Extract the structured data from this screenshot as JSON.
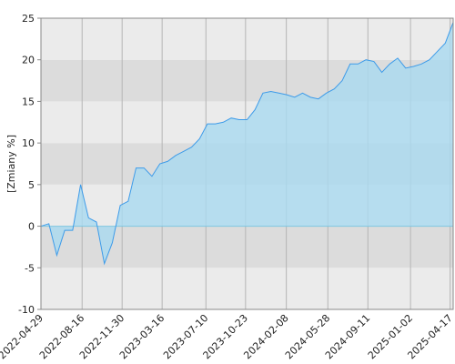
{
  "chart_data": {
    "type": "area",
    "ylabel": "[Zmiany %]",
    "x": [
      "2022-04-29",
      "2022-05-20",
      "2022-06-10",
      "2022-07-01",
      "2022-07-22",
      "2022-08-12",
      "2022-09-02",
      "2022-09-23",
      "2022-10-14",
      "2022-11-04",
      "2022-11-25",
      "2022-12-16",
      "2023-01-06",
      "2023-01-27",
      "2023-02-17",
      "2023-03-10",
      "2023-03-31",
      "2023-04-21",
      "2023-05-12",
      "2023-06-02",
      "2023-06-23",
      "2023-07-14",
      "2023-08-04",
      "2023-08-25",
      "2023-09-15",
      "2023-10-06",
      "2023-10-27",
      "2023-11-17",
      "2023-12-08",
      "2023-12-29",
      "2024-01-19",
      "2024-02-09",
      "2024-03-01",
      "2024-03-22",
      "2024-04-12",
      "2024-05-03",
      "2024-05-24",
      "2024-06-14",
      "2024-07-05",
      "2024-07-26",
      "2024-08-16",
      "2024-09-06",
      "2024-09-27",
      "2024-10-18",
      "2024-11-08",
      "2024-11-29",
      "2024-12-20",
      "2025-01-10",
      "2025-01-31",
      "2025-02-21",
      "2025-03-14",
      "2025-04-04",
      "2025-04-25"
    ],
    "series": [
      {
        "color": "#3d9be9",
        "fill": "#a9d9f0",
        "values": [
          0,
          0.3,
          -3.5,
          -0.5,
          -0.5,
          5,
          1,
          0.5,
          -4.5,
          -2,
          2.5,
          3,
          7,
          7,
          6,
          7.5,
          7.8,
          8.5,
          9,
          9.5,
          10.5,
          12.3,
          12.3,
          12.5,
          13,
          12.8,
          12.8,
          14,
          16,
          16.2,
          16,
          15.8,
          15.5,
          16,
          15.5,
          15.3,
          16,
          16.5,
          17.5,
          19.5,
          19.5,
          20,
          19.8,
          18.5,
          19.5,
          20.2,
          19,
          19.2,
          19.5,
          20,
          21,
          22,
          24.5
        ]
      }
    ],
    "xlim": [
      "2022-04-29",
      "2025-04-25"
    ],
    "xticks": [
      "2022-04-29",
      "2022-08-16",
      "2022-11-30",
      "2023-03-16",
      "2023-07-10",
      "2023-10-23",
      "2024-02-08",
      "2024-05-28",
      "2024-09-11",
      "2025-01-02",
      "2025-04-17"
    ],
    "ylim": [
      -10,
      25
    ],
    "yticks": [
      -10,
      -5,
      0,
      5,
      10,
      15,
      20,
      25
    ],
    "grid": true,
    "band_colors": [
      "#ebebeb",
      "#dcdcdc"
    ]
  }
}
